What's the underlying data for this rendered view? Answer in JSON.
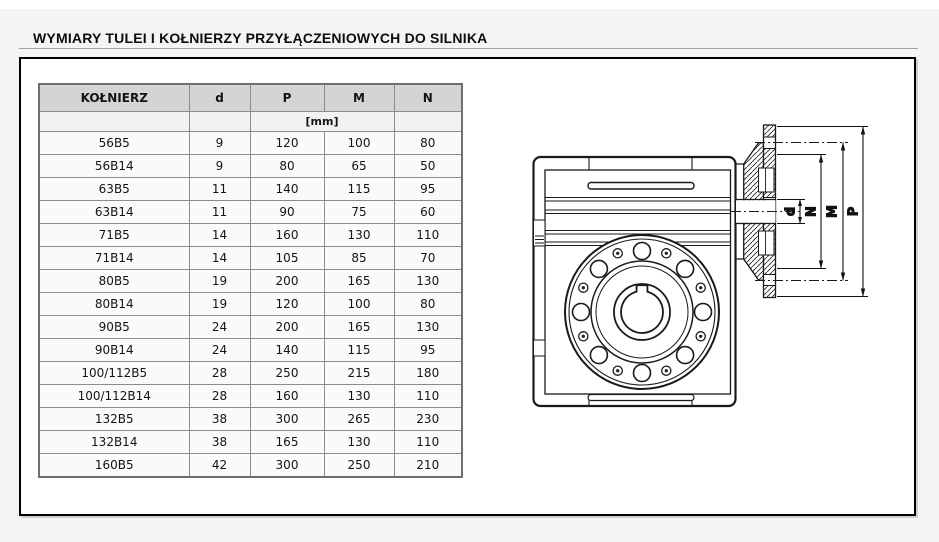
{
  "title": "WYMIARY TULEI I KOŁNIERZY PRZYŁĄCZENIOWYCH DO SILNIKA",
  "table": {
    "columns": [
      "KOŁNIERZ",
      "d",
      "P",
      "M",
      "N"
    ],
    "unit_label": "[mm]",
    "rows": [
      [
        "56B5",
        "9",
        "120",
        "100",
        "80"
      ],
      [
        "56B14",
        "9",
        "80",
        "65",
        "50"
      ],
      [
        "63B5",
        "11",
        "140",
        "115",
        "95"
      ],
      [
        "63B14",
        "11",
        "90",
        "75",
        "60"
      ],
      [
        "71B5",
        "14",
        "160",
        "130",
        "110"
      ],
      [
        "71B14",
        "14",
        "105",
        "85",
        "70"
      ],
      [
        "80B5",
        "19",
        "200",
        "165",
        "130"
      ],
      [
        "80B14",
        "19",
        "120",
        "100",
        "80"
      ],
      [
        "90B5",
        "24",
        "200",
        "165",
        "130"
      ],
      [
        "90B14",
        "24",
        "140",
        "115",
        "95"
      ],
      [
        "100/112B5",
        "28",
        "250",
        "215",
        "180"
      ],
      [
        "100/112B14",
        "28",
        "160",
        "130",
        "110"
      ],
      [
        "132B5",
        "38",
        "300",
        "265",
        "230"
      ],
      [
        "132B14",
        "38",
        "165",
        "130",
        "110"
      ],
      [
        "160B5",
        "42",
        "300",
        "250",
        "210"
      ]
    ]
  },
  "diagram": {
    "labels": {
      "d": "d",
      "n": "N",
      "m": "M",
      "p": "P"
    }
  },
  "colors": {
    "header_bg": "#d4d4d4",
    "box_border": "#000000",
    "grid": "#8c8c8c"
  }
}
